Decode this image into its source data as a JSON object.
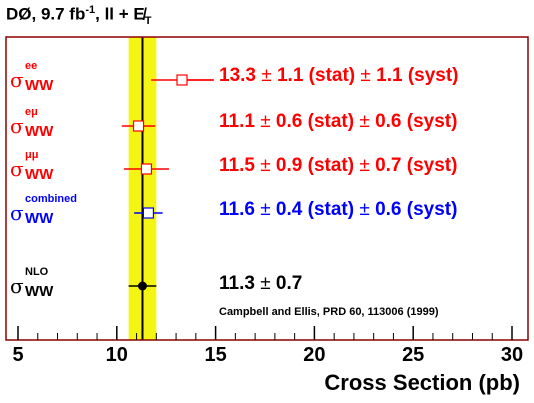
{
  "title": {
    "base": "DØ, 9.7 fb",
    "sup": "-1",
    "rest": ", ll + E̸",
    "sub": "T"
  },
  "chart_data": {
    "type": "scatter",
    "xlabel": "Cross Section (pb)",
    "xlim": [
      4.5,
      31
    ],
    "xticks": [
      "5",
      "10",
      "15",
      "20",
      "25",
      "30"
    ],
    "band": {
      "center": 11.3,
      "low": 10.6,
      "high": 12.0,
      "color": "#f5f514"
    },
    "line": {
      "x": 11.3
    },
    "rows": [
      {
        "sup": "ee",
        "sub": "WW",
        "value": 13.3,
        "err": 1.56,
        "color": "#ff0000",
        "marker": "square",
        "text": "13.3",
        "pm": "±",
        "stat": " 1.1 (stat) ",
        "syst": " 1.1 (syst)"
      },
      {
        "sup": "eμ",
        "sub": "WW",
        "value": 11.1,
        "err": 0.85,
        "color": "#ff0000",
        "marker": "square",
        "text": "11.1",
        "pm": "±",
        "stat": " 0.6 (stat) ",
        "syst": " 0.6 (syst)"
      },
      {
        "sup": "μμ",
        "sub": "WW",
        "value": 11.5,
        "err": 1.14,
        "color": "#ff0000",
        "marker": "square",
        "text": "11.5",
        "pm": "±",
        "stat": " 0.9 (stat) ",
        "syst": " 0.7 (syst)"
      },
      {
        "sup": "combined",
        "sub": "WW",
        "value": 11.6,
        "err": 0.72,
        "color": "#0000ff",
        "marker": "square",
        "text": "11.6",
        "pm": "±",
        "stat": " 0.4 (stat) ",
        "syst": " 0.6 (syst)"
      },
      {
        "sup": "NLO",
        "sub": "WW",
        "value": 11.3,
        "err": 0.7,
        "color": "#000000",
        "marker": "circle",
        "text": "11.3",
        "pm": "±",
        "stat": " 0.7",
        "syst": ""
      }
    ]
  },
  "reference": "Campbell and Ellis, PRD 60, 113006 (1999)",
  "colors": {
    "frame": "#8b0000",
    "axis": "#000000"
  }
}
